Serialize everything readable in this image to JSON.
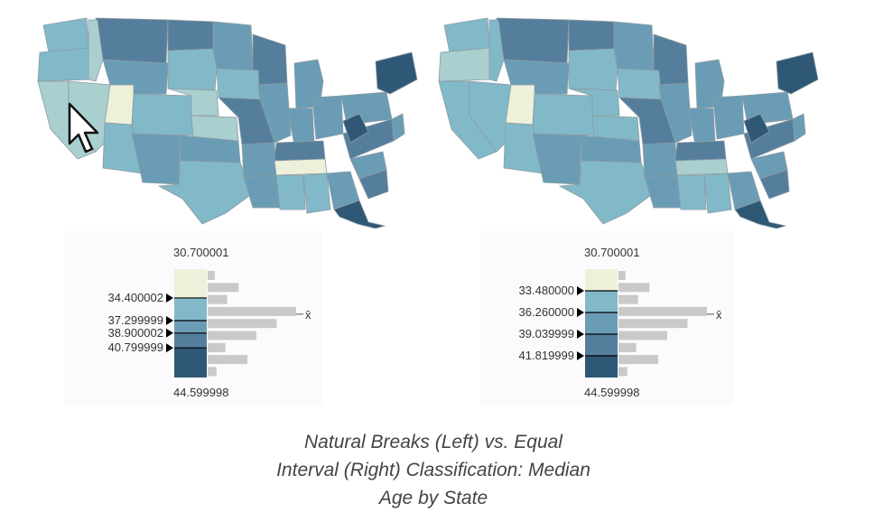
{
  "colors": {
    "class1": "#eef1da",
    "class2": "#a9cfcf",
    "class3": "#82b9c8",
    "class4": "#6a9db5",
    "class5": "#557e9c",
    "class6": "#2f5876",
    "hist_bar": "#c9c9c9",
    "state_border": "#8d9aa3",
    "legend_bg": "#fdfafd"
  },
  "maps": {
    "left": {
      "name": "natural-breaks-map",
      "state_classes": [
        3,
        5,
        3,
        2,
        5,
        4,
        2,
        2,
        4,
        3,
        5,
        1,
        3,
        2,
        2,
        3,
        4,
        4,
        4,
        4,
        3,
        4,
        4,
        5,
        3,
        4,
        4,
        5,
        1,
        3,
        3,
        4,
        4,
        4,
        6,
        5,
        6,
        5,
        6,
        4
      ]
    },
    "right": {
      "name": "equal-interval-map",
      "state_classes": [
        3,
        5,
        2,
        3,
        5,
        4,
        3,
        3,
        4,
        3,
        5,
        1,
        3,
        3,
        3,
        3,
        4,
        4,
        4,
        4,
        3,
        4,
        4,
        5,
        3,
        4,
        4,
        5,
        2,
        3,
        3,
        4,
        4,
        4,
        6,
        5,
        6,
        5,
        6,
        4
      ]
    }
  },
  "legends": {
    "left": {
      "top_value": "30.700001",
      "bottom_value": "44.599998",
      "mean_symbol": "x̄",
      "breaks": [
        "34.400002",
        "37.299999",
        "38.900002",
        "40.799999"
      ],
      "histogram": [
        0.08,
        0.35,
        0.22,
        1.0,
        0.78,
        0.55,
        0.2,
        0.45,
        0.1
      ]
    },
    "right": {
      "top_value": "30.700001",
      "bottom_value": "44.599998",
      "mean_symbol": "x̄",
      "breaks": [
        "33.480000",
        "36.260000",
        "39.039999",
        "41.819999"
      ],
      "histogram": [
        0.08,
        0.35,
        0.22,
        1.0,
        0.78,
        0.55,
        0.2,
        0.45,
        0.1
      ]
    }
  },
  "caption": {
    "line1": "Natural Breaks (Left) vs. Equal",
    "line2": "Interval (Right) Classification: Median",
    "line3": "Age by State"
  }
}
